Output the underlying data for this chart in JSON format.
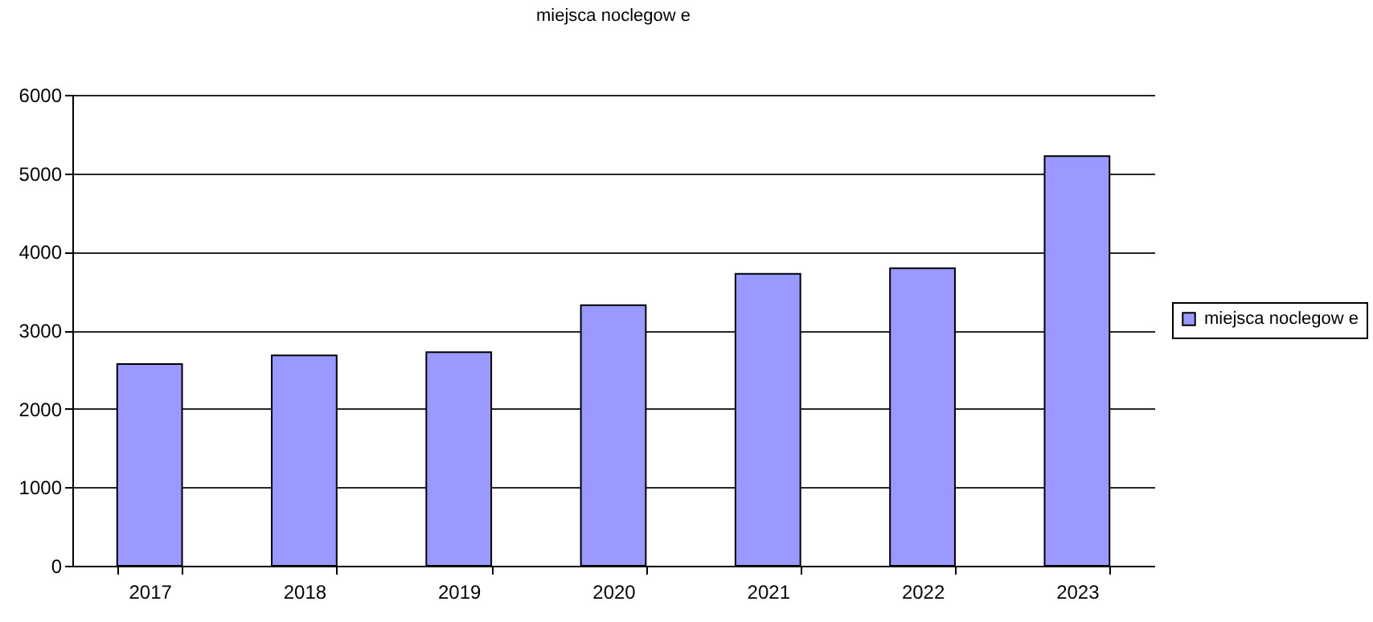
{
  "chart_data": {
    "type": "bar",
    "title": "miejsca noclegow e",
    "categories": [
      "2017",
      "2018",
      "2019",
      "2020",
      "2021",
      "2022",
      "2023"
    ],
    "series": [
      {
        "name": "miejsca noclegow e",
        "color": "#9999ff",
        "values": [
          2570,
          2680,
          2720,
          3320,
          3720,
          3790,
          5220
        ]
      }
    ],
    "ylim": [
      0,
      6000
    ],
    "yticks": [
      0,
      1000,
      2000,
      3000,
      4000,
      5000,
      6000
    ],
    "grid": "y",
    "legend": "right"
  }
}
